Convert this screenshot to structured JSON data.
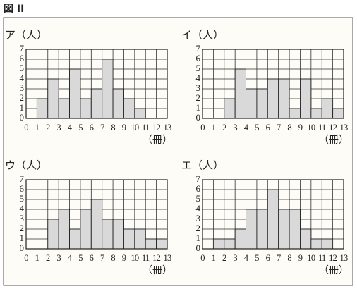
{
  "figure_title": "図 II",
  "chart_data": [
    {
      "type": "histogram",
      "y_label": "ア（人）",
      "x_label": "（冊）",
      "bins": [
        0,
        1,
        2,
        3,
        4,
        5,
        6,
        7,
        8,
        9,
        10,
        11,
        12,
        13
      ],
      "values": [
        0,
        2,
        4,
        2,
        5,
        2,
        3,
        6,
        3,
        2,
        1,
        0,
        0
      ],
      "xlim": [
        0,
        13
      ],
      "xticks": [
        0,
        1,
        2,
        3,
        4,
        5,
        6,
        7,
        8,
        9,
        10,
        11,
        12,
        13
      ],
      "ylim": [
        0,
        7
      ],
      "yticks": [
        0,
        1,
        2,
        3,
        4,
        5,
        6,
        7
      ],
      "color": "#d9d9d9",
      "grid": true
    },
    {
      "type": "histogram",
      "y_label": "イ（人）",
      "x_label": "（冊）",
      "bins": [
        0,
        1,
        2,
        3,
        4,
        5,
        6,
        7,
        8,
        9,
        10,
        11,
        12,
        13
      ],
      "values": [
        0,
        0,
        2,
        5,
        3,
        3,
        4,
        4,
        1,
        4,
        1,
        2,
        1
      ],
      "xlim": [
        0,
        13
      ],
      "xticks": [
        0,
        1,
        2,
        3,
        4,
        5,
        6,
        7,
        8,
        9,
        10,
        11,
        12,
        13
      ],
      "ylim": [
        0,
        7
      ],
      "yticks": [
        0,
        1,
        2,
        3,
        4,
        5,
        6,
        7
      ],
      "color": "#d9d9d9",
      "grid": true
    },
    {
      "type": "histogram",
      "y_label": "ウ（人）",
      "x_label": "（冊）",
      "bins": [
        0,
        1,
        2,
        3,
        4,
        5,
        6,
        7,
        8,
        9,
        10,
        11,
        12,
        13
      ],
      "values": [
        0,
        0,
        3,
        4,
        2,
        4,
        5,
        3,
        3,
        2,
        2,
        1,
        1
      ],
      "xlim": [
        0,
        13
      ],
      "xticks": [
        0,
        1,
        2,
        3,
        4,
        5,
        6,
        7,
        8,
        9,
        10,
        11,
        12,
        13
      ],
      "ylim": [
        0,
        7
      ],
      "yticks": [
        0,
        1,
        2,
        3,
        4,
        5,
        6,
        7
      ],
      "color": "#d9d9d9",
      "grid": true
    },
    {
      "type": "histogram",
      "y_label": "エ（人）",
      "x_label": "（冊）",
      "bins": [
        0,
        1,
        2,
        3,
        4,
        5,
        6,
        7,
        8,
        9,
        10,
        11,
        12,
        13
      ],
      "values": [
        0,
        1,
        1,
        2,
        4,
        4,
        6,
        4,
        4,
        2,
        1,
        1,
        0
      ],
      "xlim": [
        0,
        13
      ],
      "xticks": [
        0,
        1,
        2,
        3,
        4,
        5,
        6,
        7,
        8,
        9,
        10,
        11,
        12,
        13
      ],
      "ylim": [
        0,
        7
      ],
      "yticks": [
        0,
        1,
        2,
        3,
        4,
        5,
        6,
        7
      ],
      "color": "#d9d9d9",
      "grid": true
    }
  ]
}
